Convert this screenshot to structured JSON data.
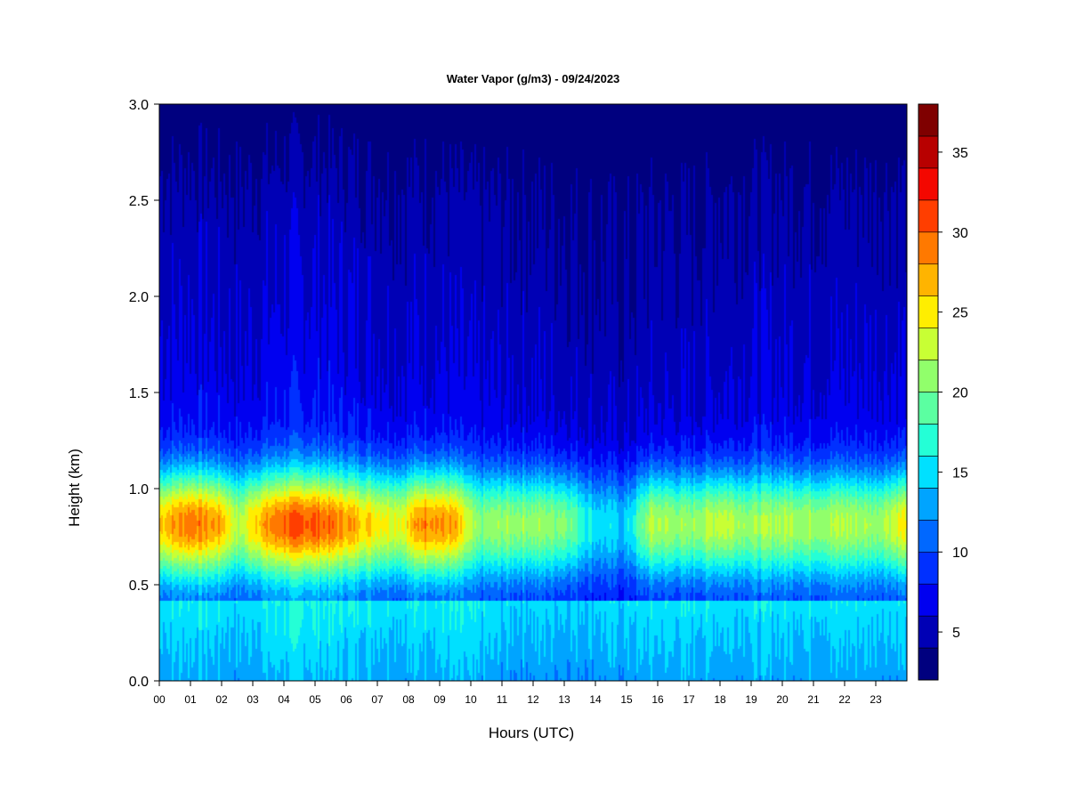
{
  "chart_data": {
    "type": "heatmap",
    "title": "Water Vapor (g/m3) - 09/24/2023",
    "xlabel": "Hours (UTC)",
    "ylabel": "Height (km)",
    "xlim": [
      0,
      24
    ],
    "ylim": [
      0,
      3
    ],
    "x_ticks": [
      "00",
      "01",
      "02",
      "03",
      "04",
      "05",
      "06",
      "07",
      "08",
      "09",
      "10",
      "11",
      "12",
      "13",
      "14",
      "15",
      "16",
      "17",
      "18",
      "19",
      "20",
      "21",
      "22",
      "23"
    ],
    "y_ticks": [
      "0.0",
      "0.5",
      "1.0",
      "1.5",
      "2.0",
      "2.5",
      "3.0"
    ],
    "colorbar": {
      "levels": [
        2,
        4,
        6,
        8,
        10,
        12,
        14,
        16,
        18,
        20,
        22,
        24,
        26,
        28,
        30,
        32,
        34,
        36,
        38
      ],
      "colors": [
        "#00007f",
        "#0000b5",
        "#0000f0",
        "#0030ff",
        "#0068ff",
        "#00a4ff",
        "#00e0ff",
        "#24ffd6",
        "#5bffa1",
        "#91ff6b",
        "#c8ff34",
        "#ffee00",
        "#ffb400",
        "#ff7900",
        "#ff3e00",
        "#f40700",
        "#b80000",
        "#7f0000"
      ],
      "tick_values": [
        5,
        10,
        15,
        20,
        25,
        30,
        35
      ],
      "tick_labels": [
        "5",
        "10",
        "15",
        "20",
        "25",
        "30",
        "35"
      ]
    },
    "hour_profiles": [
      {
        "hour": 0,
        "surface": 13,
        "peak": 27,
        "background": 9.5
      },
      {
        "hour": 1,
        "surface": 13.5,
        "peak": 30.5,
        "background": 10
      },
      {
        "hour": 2,
        "surface": 13,
        "peak": 28,
        "background": 9.5
      },
      {
        "hour": 2.6,
        "surface": 12.5,
        "peak": 22.5,
        "background": 9
      },
      {
        "hour": 3,
        "surface": 13,
        "peak": 27,
        "background": 9.5
      },
      {
        "hour": 4,
        "surface": 14,
        "peak": 31,
        "background": 10.5
      },
      {
        "hour": 5,
        "surface": 14,
        "peak": 31.5,
        "background": 10.5
      },
      {
        "hour": 6,
        "surface": 13.5,
        "peak": 29,
        "background": 10
      },
      {
        "hour": 7,
        "surface": 13.5,
        "peak": 26,
        "background": 9.5
      },
      {
        "hour": 7.8,
        "surface": 13,
        "peak": 25,
        "background": 9
      },
      {
        "hour": 8.5,
        "surface": 13.5,
        "peak": 30,
        "background": 9.5
      },
      {
        "hour": 9.5,
        "surface": 13.5,
        "peak": 28,
        "background": 9
      },
      {
        "hour": 10.2,
        "surface": 13,
        "peak": 21,
        "background": 8.5
      },
      {
        "hour": 11,
        "surface": 12.5,
        "peak": 22,
        "background": 8.5
      },
      {
        "hour": 12,
        "surface": 12.5,
        "peak": 22,
        "background": 8.5
      },
      {
        "hour": 13,
        "surface": 12.5,
        "peak": 21.5,
        "background": 8
      },
      {
        "hour": 14,
        "surface": 12.5,
        "peak": 16,
        "background": 7.5
      },
      {
        "hour": 15,
        "surface": 12.5,
        "peak": 15,
        "background": 7
      },
      {
        "hour": 15.8,
        "surface": 13,
        "peak": 23,
        "background": 8
      },
      {
        "hour": 17,
        "surface": 13,
        "peak": 21.5,
        "background": 8
      },
      {
        "hour": 18,
        "surface": 13,
        "peak": 24,
        "background": 8.5
      },
      {
        "hour": 19,
        "surface": 13,
        "peak": 22,
        "background": 9
      },
      {
        "hour": 20,
        "surface": 13,
        "peak": 23,
        "background": 9
      },
      {
        "hour": 21,
        "surface": 13,
        "peak": 22.5,
        "background": 9
      },
      {
        "hour": 22,
        "surface": 13,
        "peak": 23,
        "background": 9
      },
      {
        "hour": 23,
        "surface": 13,
        "peak": 22,
        "background": 9
      },
      {
        "hour": 24,
        "surface": 13,
        "peak": 26,
        "background": 9
      }
    ]
  }
}
